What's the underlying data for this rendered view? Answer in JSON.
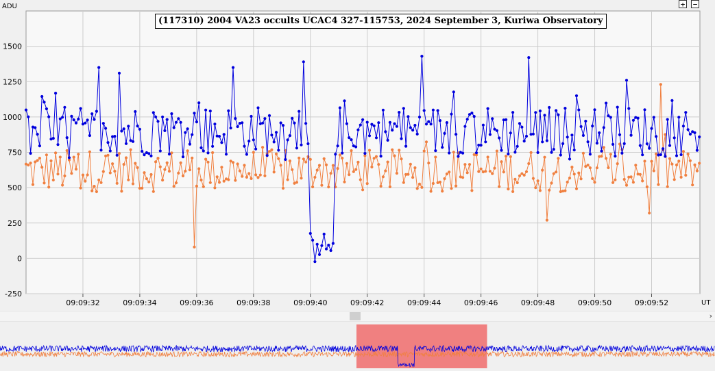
{
  "window": {
    "zoom_in_label": "+",
    "zoom_out_label": "−"
  },
  "colors": {
    "series_main": "#0000dd",
    "series_ref": "#f08040",
    "navigator_window": "#f08080",
    "grid": "#cccccc"
  },
  "icons": {
    "zoom_in": "plus-icon",
    "zoom_out": "minus-icon",
    "scroll_right": "chevron-right-icon"
  },
  "scroll": {
    "arrow": "›"
  },
  "chart_data": {
    "type": "line",
    "title": "(117310) 2004 VA23 occults UCAC4 327-115753, 2024 September 3, Kuriwa Observatory",
    "ylabel": "ADU",
    "xlabel": "UT",
    "ylim": [
      -250,
      1750
    ],
    "xlim": [
      "09:09:30.0",
      "09:09:53.7"
    ],
    "yticks": [
      -250,
      0,
      250,
      500,
      750,
      1000,
      1250,
      1500
    ],
    "xticks": [
      "09:09:32",
      "09:09:34",
      "09:09:36",
      "09:09:38",
      "09:09:40",
      "09:09:42",
      "09:09:44",
      "09:09:46",
      "09:09:48",
      "09:09:50",
      "09:09:52"
    ],
    "xticks_seconds": [
      32,
      34,
      36,
      38,
      40,
      42,
      44,
      46,
      48,
      50,
      52
    ],
    "grid": true,
    "legend": "none",
    "sampling": {
      "start_second": 30.0,
      "interval_seconds": 0.08,
      "count": 297
    },
    "event": {
      "start_second": 40.0,
      "end_second": 40.8,
      "drop_adu": 75
    },
    "series": [
      {
        "color": "#0000dd",
        "baseline": 900,
        "noise": 180,
        "peaks": [
          [
            32.6,
            1350
          ],
          [
            33.3,
            1310
          ],
          [
            36.1,
            1100
          ],
          [
            37.3,
            1350
          ],
          [
            39.8,
            1390
          ],
          [
            43.9,
            1430
          ],
          [
            47.7,
            1420
          ],
          [
            49.4,
            1150
          ],
          [
            51.1,
            1260
          ]
        ]
      },
      {
        "color": "#f08040",
        "baseline": 620,
        "noise": 150,
        "peaks": [
          [
            35.9,
            80
          ],
          [
            48.3,
            270
          ],
          [
            51.9,
            320
          ],
          [
            52.3,
            1230
          ]
        ]
      }
    ],
    "navigator": {
      "window_start_second": 38.0,
      "window_end_second": 44.3,
      "total_start_second": 20.8,
      "total_end_second": 55.3
    }
  }
}
